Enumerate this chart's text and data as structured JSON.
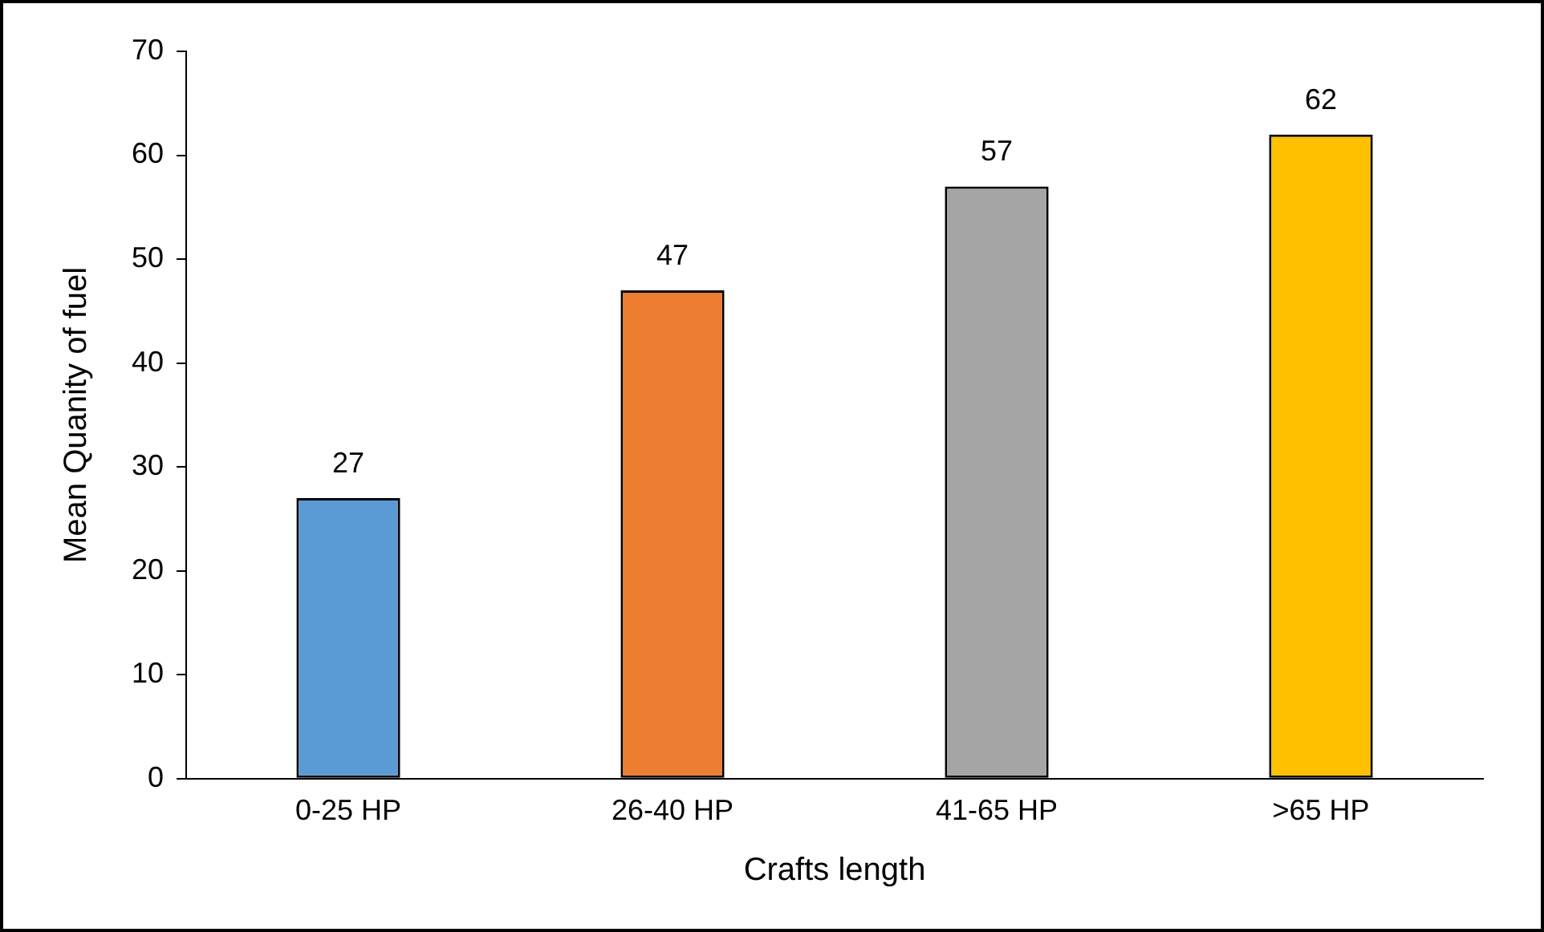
{
  "chart_data": {
    "type": "bar",
    "xlabel": "Crafts length",
    "ylabel": "Mean Quanity of fuel",
    "categories": [
      "0-25 HP",
      "26-40 HP",
      "41-65 HP",
      ">65 HP"
    ],
    "values": [
      27,
      47,
      57,
      62
    ],
    "colors": [
      "#5b9bd5",
      "#ed7d31",
      "#a5a5a5",
      "#ffc000"
    ],
    "ylim": [
      0,
      70
    ],
    "yticks": [
      0,
      10,
      20,
      30,
      40,
      50,
      60,
      70
    ],
    "data_labels": true,
    "legend": false,
    "grid": false
  }
}
